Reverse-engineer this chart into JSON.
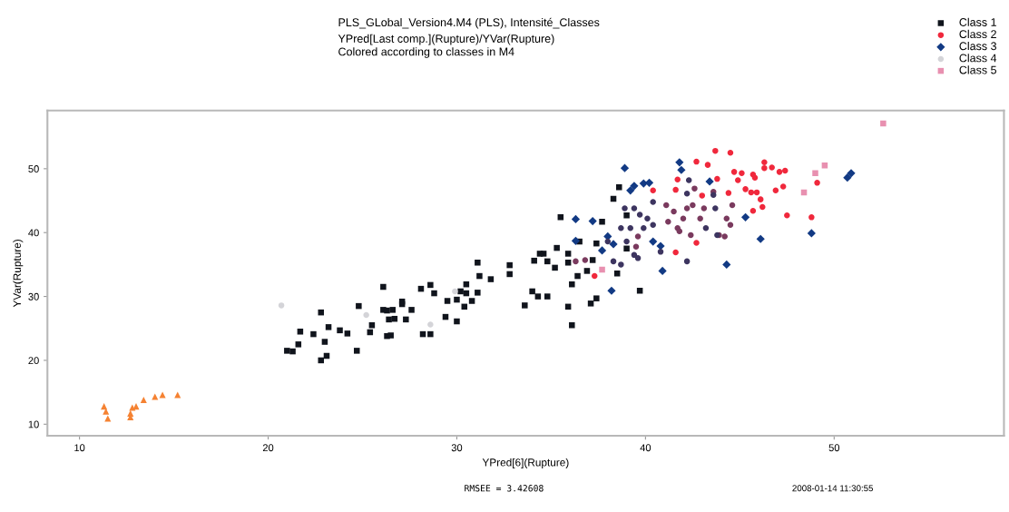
{
  "chart_data": {
    "type": "scatter",
    "title": "PLS_GLobal_Version4.M4 (PLS), Intensité_Classes",
    "subtitle": "YPred[Last comp.](Rupture)/YVar(Rupture)\nColored according to classes in M4",
    "xlabel": "YPred[6](Rupture)",
    "ylabel": "YVar(Rupture)",
    "xlim": [
      8.3,
      59
    ],
    "ylim": [
      8.2,
      59.1
    ],
    "xticks": [
      10,
      20,
      30,
      40,
      50
    ],
    "yticks": [
      10,
      20,
      30,
      40,
      50
    ],
    "grid": false,
    "legend": "top right",
    "annotations": [
      "RMSEE = 3.42608",
      "2008-01-14 11:30:55"
    ],
    "series": [
      {
        "name": "Class 1",
        "color": "#10141c",
        "marker": "square",
        "x": [
          21.0,
          21.3,
          21.6,
          21.7,
          22.4,
          22.8,
          22.8,
          23.0,
          23.1,
          23.2,
          23.8,
          24.2,
          24.7,
          24.8,
          25.4,
          25.5,
          26.1,
          26.3,
          26.3,
          26.4,
          26.5,
          26.6,
          26.7,
          27.1,
          27.1,
          27.3,
          27.6,
          28.1,
          28.2,
          28.6,
          28.6,
          28.8,
          29.4,
          29.5,
          30.0,
          30.0,
          30.2,
          30.4,
          30.5,
          30.5,
          30.8,
          31.1,
          31.1,
          31.2,
          31.8,
          32.8,
          32.8,
          33.6,
          34.0,
          34.1,
          34.3,
          34.4,
          34.6,
          34.8,
          34.8,
          35.2,
          35.3,
          35.5,
          35.9,
          35.9,
          35.9,
          36.1,
          36.1,
          36.4,
          36.5,
          36.9,
          37.1,
          37.2,
          37.4,
          37.4,
          37.7,
          38.5,
          38.6,
          39.0,
          39.7,
          39.0,
          38.3,
          26.1
        ],
        "values": [
          21.5,
          21.4,
          22.5,
          24.5,
          24.1,
          27.5,
          20.0,
          22.9,
          20.7,
          25.2,
          24.7,
          24.2,
          21.5,
          28.5,
          24.4,
          25.5,
          27.9,
          27.8,
          23.8,
          26.4,
          23.9,
          27.9,
          26.5,
          29.2,
          28.8,
          26.4,
          27.9,
          31.2,
          24.1,
          31.8,
          24.1,
          30.5,
          26.8,
          29.3,
          26.1,
          29.5,
          30.8,
          28.4,
          31.9,
          30.5,
          29.3,
          35.3,
          30.6,
          33.2,
          32.7,
          34.9,
          33.5,
          28.6,
          30.8,
          35.6,
          30.0,
          36.7,
          36.7,
          35.5,
          30.0,
          34.5,
          37.6,
          42.4,
          28.4,
          36.7,
          35.3,
          31.9,
          25.5,
          33.2,
          38.6,
          34.0,
          28.9,
          35.7,
          29.7,
          38.3,
          41.7,
          33.6,
          47.1,
          42.7,
          30.9,
          37.5,
          45.3,
          31.5
        ]
      },
      {
        "name": "Class 2",
        "color": "#f0283c",
        "marker": "circle",
        "x": [
          43.7,
          44.5,
          42.7,
          43.3,
          41.7,
          41.6,
          40.4,
          43.8,
          44.7,
          45.1,
          44.9,
          45.7,
          45.8,
          46.3,
          46.3,
          46.7,
          47.1,
          47.4,
          47.3,
          46.9,
          45.3,
          45.6,
          45.9,
          46.1,
          46.2,
          45.7,
          47.5,
          48.8,
          49.1,
          42.7,
          41.6,
          37.3,
          44.4,
          43.0
        ],
        "values": [
          52.8,
          52.5,
          51.1,
          50.6,
          48.3,
          46.7,
          46.6,
          48.4,
          49.5,
          49.3,
          48.2,
          49.1,
          48.6,
          51.0,
          50.1,
          50.2,
          49.5,
          49.7,
          47.2,
          46.6,
          46.8,
          46.3,
          46.3,
          45.2,
          44.0,
          43.4,
          42.7,
          42.4,
          47.8,
          38.4,
          36.9,
          33.2,
          46.2,
          45.8
        ]
      },
      {
        "name": "Class 3",
        "color": "#123a84",
        "marker": "diamond",
        "x": [
          36.3,
          37.2,
          38.2,
          38.9,
          39.2,
          39.4,
          39.9,
          40.2,
          40.9,
          37.7,
          38.0,
          38.3,
          40.8,
          41.8,
          41.9,
          42.1,
          43.4,
          44.3,
          45.3,
          46.1,
          50.7,
          50.9,
          36.3,
          40.4,
          48.8
        ],
        "values": [
          42.1,
          41.8,
          30.9,
          50.1,
          46.6,
          47.3,
          47.7,
          47.8,
          34.0,
          37.2,
          39.4,
          38.2,
          37.9,
          51.0,
          49.8,
          null,
          48.0,
          35.0,
          42.4,
          39.0,
          48.6,
          49.3,
          38.7,
          38.6,
          39.9
        ]
      },
      {
        "name": "Class 4",
        "color": "#d4d4d8",
        "marker": "circle",
        "x": [
          20.7,
          25.2,
          28.6,
          29.9
        ],
        "values": [
          28.6,
          27.1,
          25.6,
          30.8
        ]
      },
      {
        "name": "Class 5",
        "color": "#e890b0",
        "marker": "square",
        "x": [
          52.6,
          49.5,
          48.4,
          49.0,
          37.7
        ],
        "values": [
          57.1,
          50.5,
          46.3,
          49.3,
          34.2
        ]
      },
      {
        "color": "#7a3a5e",
        "marker": "circle",
        "x": [
          41.1,
          41.5,
          41.2,
          41.7,
          42.0,
          42.2,
          42.5,
          42.9,
          41.8,
          42.4,
          42.6,
          42.8,
          43.1,
          43.6,
          43.9,
          44.3,
          44.6,
          44.5,
          44.2,
          39.6,
          39.5,
          36.3,
          36.8
        ],
        "values": [
          44.3,
          43.3,
          41.7,
          40.7,
          42.2,
          43.8,
          44.3,
          42.2,
          40.2,
          39.6,
          46.9,
          null,
          43.8,
          46.4,
          39.6,
          42.2,
          44.3,
          41.2,
          39.4,
          39.4,
          37.8,
          35.5,
          35.7
        ]
      },
      {
        "color": "#3d3560",
        "marker": "circle",
        "x": [
          38.9,
          39.4,
          39.7,
          40.1,
          40.4,
          39.9,
          39.2,
          38.7,
          39.0,
          39.6,
          38.3,
          38.7,
          40.4,
          42.3,
          42.2,
          43.7,
          43.2,
          43.8,
          43.6,
          39.4,
          40.8,
          42.2,
          38.0
        ],
        "values": [
          43.8,
          43.8,
          42.8,
          42.2,
          41.2,
          40.7,
          40.7,
          40.7,
          38.6,
          36.0,
          35.5,
          35.0,
          44.8,
          48.2,
          46.1,
          43.8,
          40.7,
          39.6,
          45.9,
          36.5,
          37.0,
          35.5,
          38.6
        ]
      },
      {
        "color": "#f58232",
        "marker": "triangle",
        "x": [
          11.3,
          11.4,
          11.5,
          12.7,
          12.7,
          12.8,
          13.0,
          13.4,
          14.0,
          14.4,
          15.2
        ],
        "values": [
          12.8,
          12.0,
          10.9,
          11.1,
          11.7,
          12.6,
          12.8,
          13.8,
          14.3,
          14.6,
          14.6
        ]
      }
    ]
  }
}
